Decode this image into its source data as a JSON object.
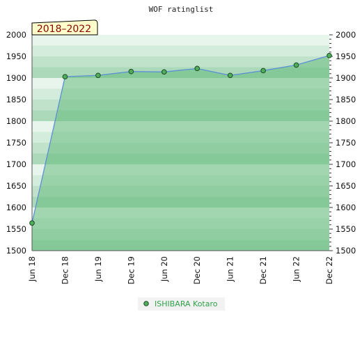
{
  "chart_data": {
    "type": "line",
    "title": "WOF ratinglist",
    "badge": "2018–2022",
    "x": [
      "Jun 18",
      "Dec 18",
      "Jun 19",
      "Dec 19",
      "Jun 20",
      "Dec 20",
      "Jun 21",
      "Dec 21",
      "Jun 22",
      "Dec 22"
    ],
    "y_ticks": [
      2000,
      1950,
      1900,
      1850,
      1800,
      1750,
      1700,
      1650,
      1600,
      1550,
      1500
    ],
    "ylim": [
      1500,
      2000
    ],
    "series": [
      {
        "name": "ISHIBARA Kotaro",
        "values": [
          1564,
          1903,
          1906,
          1915,
          1914,
          1922,
          1906,
          1917,
          1930,
          1952
        ]
      }
    ],
    "grid": "horizontal-bands",
    "legend": "bottom-center",
    "colors": {
      "line": "#5b8fd6",
      "marker_fill": "#4fae5a",
      "marker_stroke": "#1c4a24",
      "fill": "#68bb7f",
      "band_dark": "#acd9b9",
      "band_light": "#e8f5ec",
      "badge_bg": "#ffffcc",
      "badge_text": "#8b0000",
      "legend_text": "#2fa24a",
      "legend_bg": "#f2f2f2"
    }
  }
}
